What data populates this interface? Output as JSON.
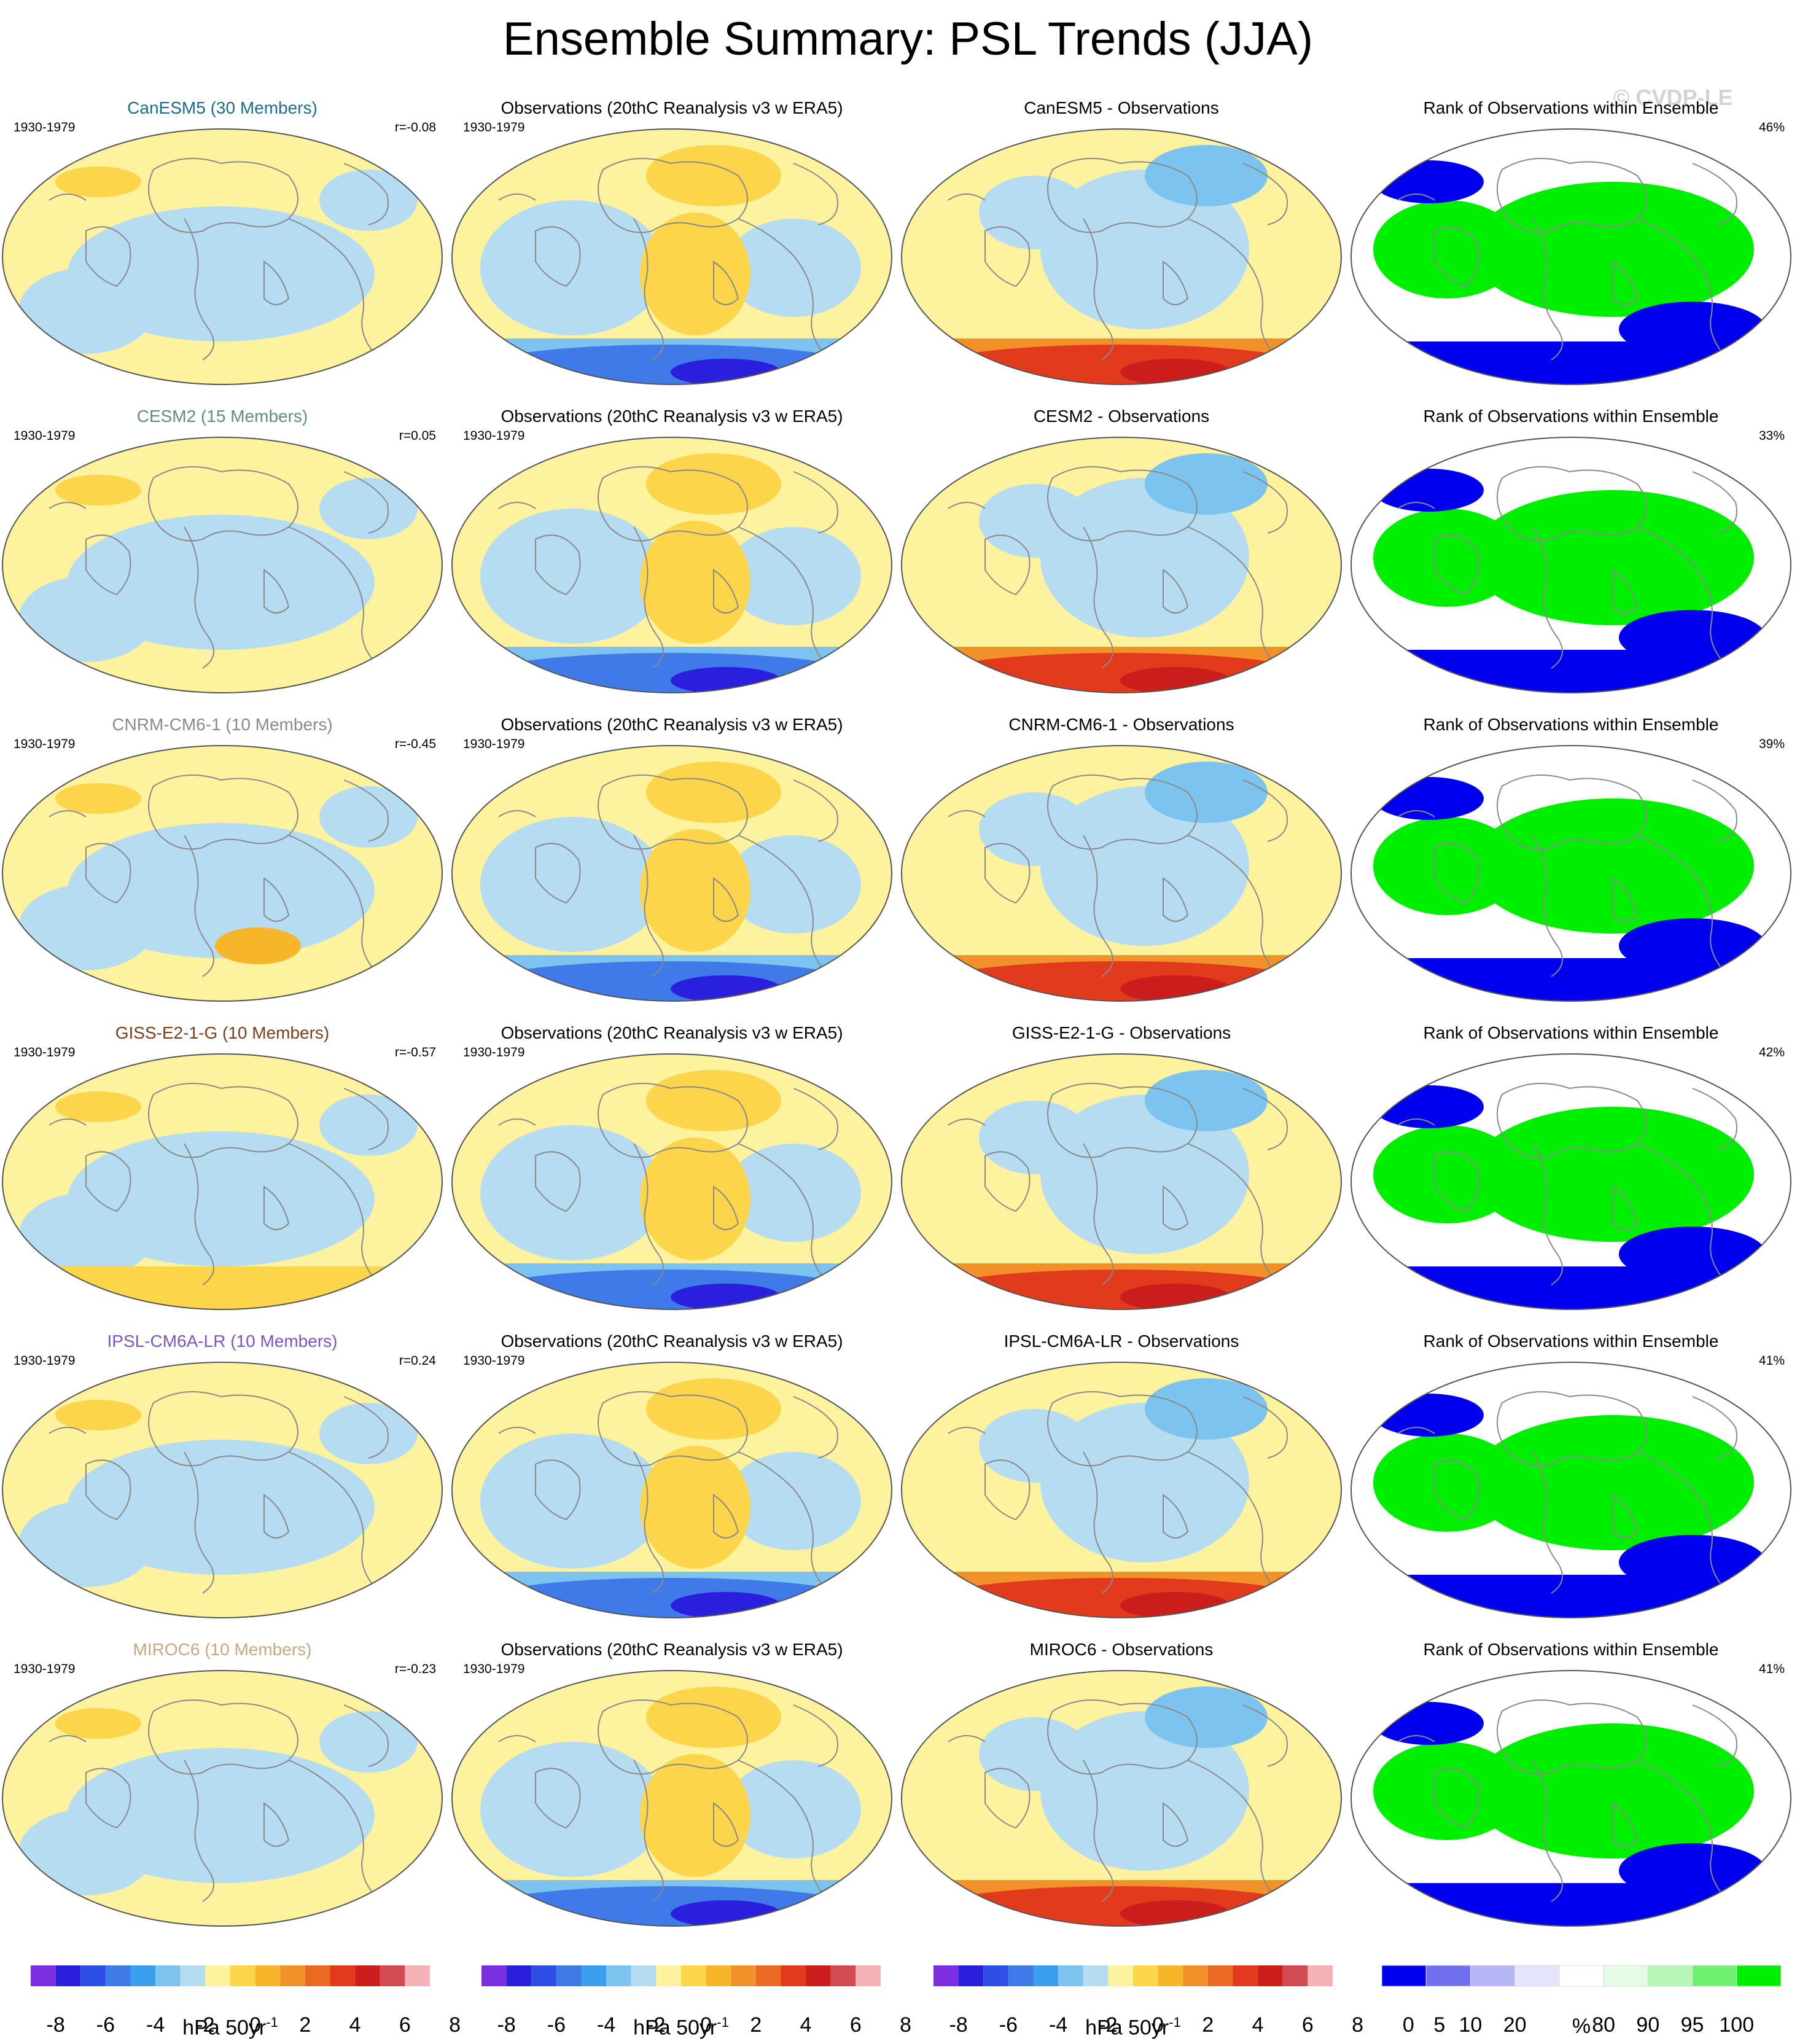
{
  "title": "Ensemble Summary: PSL Trends (JJA)",
  "watermark": "© CVDP-LE",
  "period": "1930-1979",
  "obs_title": "Observations (20thC Reanalysis v3 w ERA5)",
  "rank_title": "Rank of Observations within Ensemble",
  "rows": [
    {
      "model": "CanESM5 (30 Members)",
      "model_color": "#1a6e8e",
      "r": "r=-0.08",
      "diff_title": "CanESM5 - Observations",
      "rank_pct": "46%"
    },
    {
      "model": "CESM2 (15 Members)",
      "model_color": "#5e8f78",
      "r": "r=0.05",
      "diff_title": "CESM2 - Observations",
      "rank_pct": "33%"
    },
    {
      "model": "CNRM-CM6-1 (10 Members)",
      "model_color": "#8a8a8a",
      "r": "r=-0.45",
      "diff_title": "CNRM-CM6-1 - Observations",
      "rank_pct": "39%"
    },
    {
      "model": "GISS-E2-1-G (10 Members)",
      "model_color": "#7a3f1c",
      "r": "r=-0.57",
      "diff_title": "GISS-E2-1-G - Observations",
      "rank_pct": "42%"
    },
    {
      "model": "IPSL-CM6A-LR (10 Members)",
      "model_color": "#7b55c2",
      "r": "r=0.24",
      "diff_title": "IPSL-CM6A-LR - Observations",
      "rank_pct": "41%"
    },
    {
      "model": "MIROC6 (10 Members)",
      "model_color": "#c8a77e",
      "r": "r=-0.23",
      "diff_title": "MIROC6 - Observations",
      "rank_pct": "41%"
    }
  ],
  "colors": {
    "trend_palette": [
      "#7b2fe0",
      "#2a1fdc",
      "#2d4fe6",
      "#3f7ae8",
      "#3aa0ee",
      "#7dc3ef",
      "#b6dcf2",
      "#fdf29e",
      "#fcd54a",
      "#f7b62a",
      "#f2902a",
      "#ea6a22",
      "#e23a1c",
      "#cc1d1d",
      "#d24a52",
      "#f4b1b6"
    ],
    "rank_palette": [
      "#0000ee",
      "#6f6ff0",
      "#b6b6f6",
      "#e4e4fb",
      "#ffffff",
      "#e4fbe4",
      "#b6f6b6",
      "#6ff06f",
      "#00ee00"
    ],
    "map_outline": "#555555",
    "coastline": "#8a8a8a"
  },
  "colorbars": {
    "trend": {
      "ticks": [
        "-8",
        "-6",
        "-4",
        "-2",
        "0",
        "2",
        "4",
        "6",
        "8"
      ],
      "units_prefix": "hPa 50yr",
      "units_exp": "-1"
    },
    "rank": {
      "ticks": [
        "0",
        "5",
        "10",
        "20",
        "80",
        "90",
        "95",
        "100"
      ],
      "units": "%"
    }
  }
}
